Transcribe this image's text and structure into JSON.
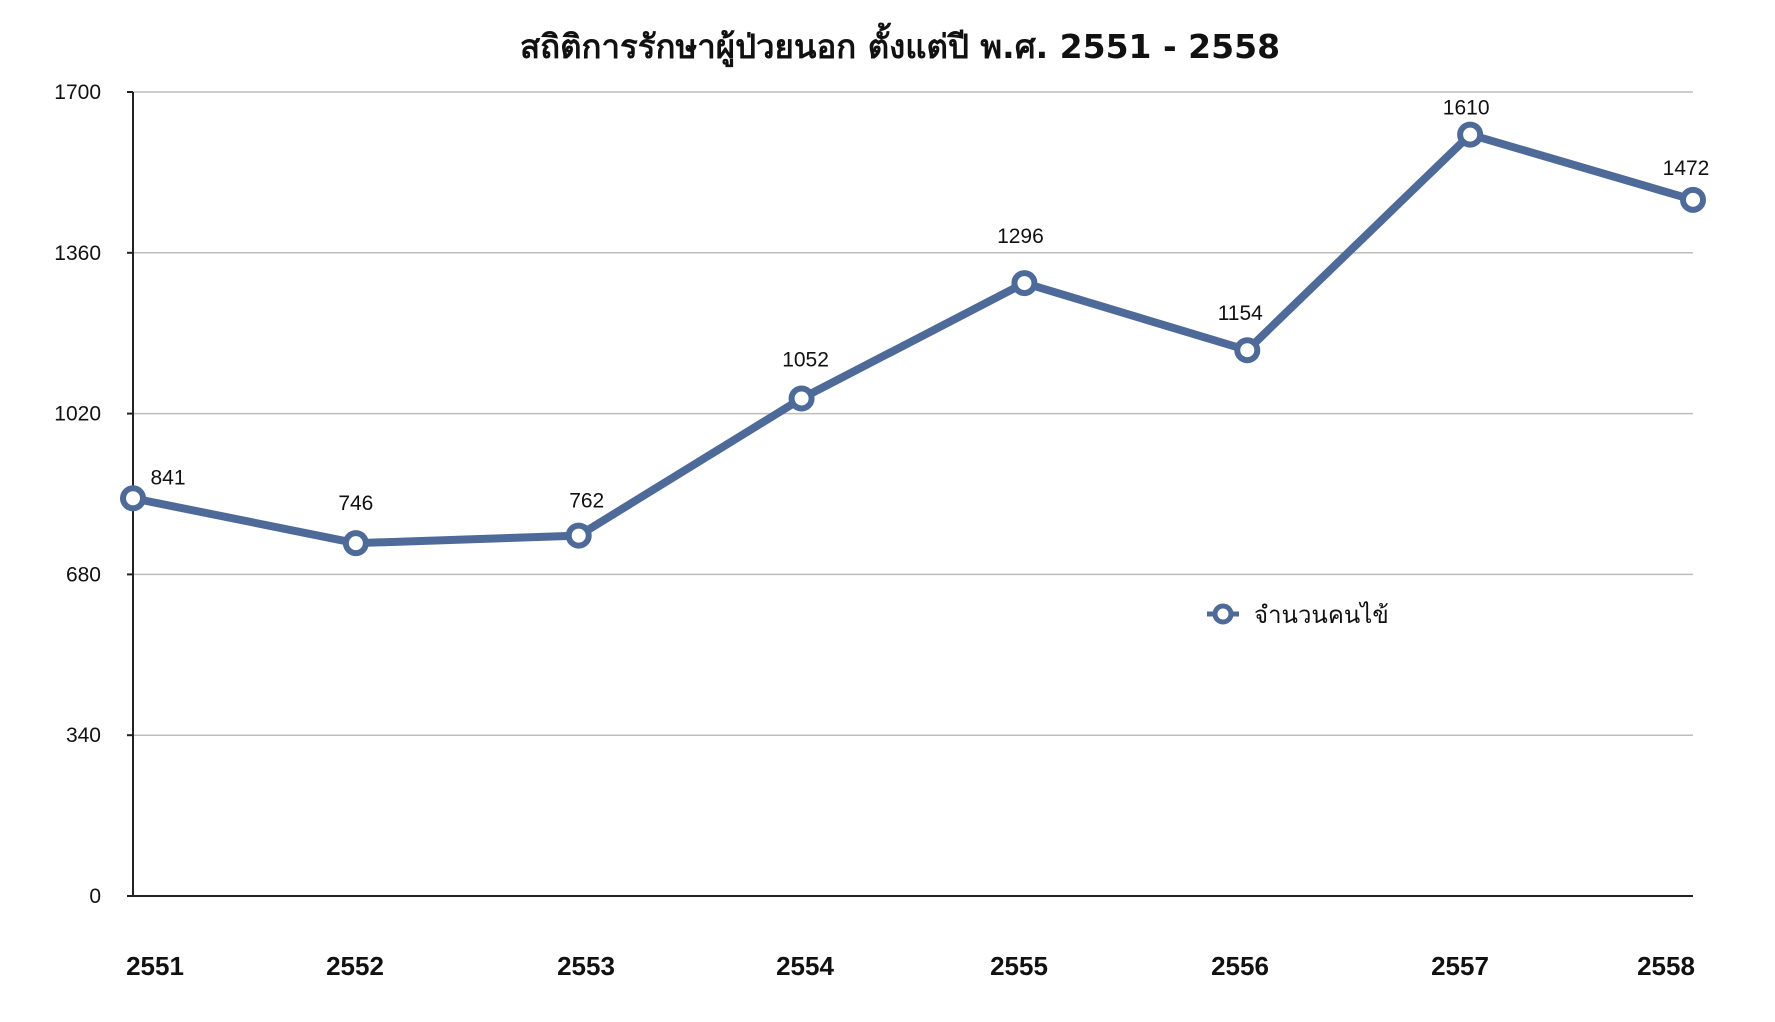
{
  "chart_data": {
    "type": "line",
    "title": "สถิติการรักษาผู้ป่วยนอก ตั้งแต่ปี พ.ศ. 2551 - 2558",
    "xlabel": "",
    "ylabel": "",
    "categories": [
      "2551",
      "2552",
      "2553",
      "2554",
      "2555",
      "2556",
      "2557",
      "2558"
    ],
    "series": [
      {
        "name": "จำนวนคนไข้",
        "values": [
          841,
          746,
          762,
          1052,
          1296,
          1154,
          1610,
          1472
        ],
        "color": "#4e6a99"
      }
    ],
    "ylim": [
      0,
      1700
    ],
    "yticks": [
      "0",
      "340",
      "680",
      "1020",
      "1360",
      "1700"
    ],
    "data_labels": [
      "841",
      "746",
      "762",
      "1052",
      "1296",
      "1154",
      "1610",
      "1472"
    ],
    "grid": true,
    "legend": "inside-right",
    "colors": {
      "line": "#4e6a99",
      "grid": "#bdbdbd",
      "axis": "#222222"
    }
  }
}
